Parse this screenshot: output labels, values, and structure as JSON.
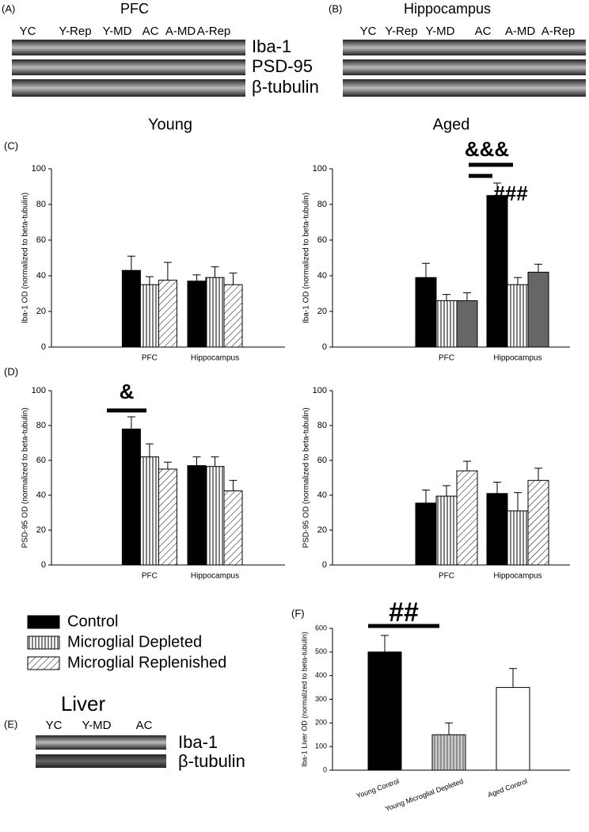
{
  "blots": [
    {
      "panel": "(A)",
      "title": "PFC",
      "lanes": [
        "YC",
        "Y-Rep",
        "Y-MD",
        "AC",
        "A-MD",
        "A-Rep"
      ],
      "rows": [
        "Iba-1",
        "PSD-95",
        "β-tubulin"
      ]
    },
    {
      "panel": "(B)",
      "title": "Hippocampus",
      "lanes": [
        "YC",
        "Y-Rep",
        "Y-MD",
        "AC",
        "A-MD",
        "A-Rep"
      ]
    },
    {
      "panel": "(E)",
      "title": "Liver",
      "lanes": [
        "YC",
        "Y-MD",
        "AC"
      ],
      "rows": [
        "Iba-1",
        "β-tubulin"
      ]
    }
  ],
  "headings": [
    "Young",
    "Aged"
  ],
  "panels": [
    "(C)",
    "(D)",
    "(F)"
  ],
  "chart_data": [
    {
      "type": "bar",
      "ylabel": "Iba-1 OD (normalized to beta-tubulin)",
      "categories": [
        "PFC",
        "Hippocampus"
      ],
      "ylim": [
        0,
        100
      ],
      "yticks": [
        0,
        20,
        40,
        60,
        80,
        100
      ],
      "series": [
        {
          "name": "Control",
          "color": "#000000",
          "pattern": "solid",
          "values": [
            43,
            37
          ],
          "errors": [
            8,
            3.5
          ]
        },
        {
          "name": "Microglial Depleted",
          "color": "#000000",
          "pattern": "vertical",
          "values": [
            35,
            39
          ],
          "errors": [
            4.5,
            6
          ]
        },
        {
          "name": "Microglial Replenished",
          "color": "#000000",
          "pattern": "diagonal",
          "values": [
            37.5,
            35
          ],
          "errors": [
            10,
            6.5
          ]
        }
      ]
    },
    {
      "type": "bar",
      "ylabel": "Iba-1 OD (normalized to beta-tubulin)",
      "categories": [
        "PFC",
        "Hippocampus"
      ],
      "ylim": [
        0,
        100
      ],
      "yticks": [
        0,
        20,
        40,
        60,
        80,
        100
      ],
      "annotations": [
        "&&&",
        "###"
      ],
      "series": [
        {
          "name": "Control",
          "color": "#000000",
          "pattern": "solid",
          "values": [
            39,
            85
          ],
          "errors": [
            8,
            7
          ]
        },
        {
          "name": "Microglial Depleted",
          "color": "#000000",
          "pattern": "vertical",
          "values": [
            26,
            35
          ],
          "errors": [
            3.5,
            4
          ]
        },
        {
          "name": "Microglial Replenished",
          "color": "#666666",
          "pattern": "solid",
          "values": [
            26,
            42
          ],
          "errors": [
            4.5,
            4.5
          ]
        }
      ]
    },
    {
      "type": "bar",
      "ylabel": "PSD-95 OD (normalized to beta-tubulin)",
      "categories": [
        "PFC",
        "Hippocampus"
      ],
      "ylim": [
        0,
        100
      ],
      "yticks": [
        0,
        20,
        40,
        60,
        80,
        100
      ],
      "annotations": [
        "&"
      ],
      "series": [
        {
          "name": "Control",
          "color": "#000000",
          "pattern": "solid",
          "values": [
            78,
            57
          ],
          "errors": [
            7,
            5
          ]
        },
        {
          "name": "Microglial Depleted",
          "color": "#000000",
          "pattern": "vertical",
          "values": [
            62,
            56.5
          ],
          "errors": [
            7.5,
            5.5
          ]
        },
        {
          "name": "Microglial Replenished",
          "color": "#000000",
          "pattern": "diagonal",
          "values": [
            55,
            42.5
          ],
          "errors": [
            4,
            6
          ]
        }
      ]
    },
    {
      "type": "bar",
      "ylabel": "PSD-95 OD (normalized to beta-tubulin)",
      "categories": [
        "PFC",
        "Hippocampus"
      ],
      "ylim": [
        0,
        100
      ],
      "yticks": [
        0,
        20,
        40,
        60,
        80,
        100
      ],
      "series": [
        {
          "name": "Control",
          "color": "#000000",
          "pattern": "solid",
          "values": [
            35.5,
            41
          ],
          "errors": [
            7.5,
            6.5
          ]
        },
        {
          "name": "Microglial Depleted",
          "color": "#000000",
          "pattern": "vertical",
          "values": [
            39.5,
            31
          ],
          "errors": [
            6,
            10.5
          ]
        },
        {
          "name": "Microglial Replenished",
          "color": "#000000",
          "pattern": "diagonal",
          "values": [
            54,
            48.5
          ],
          "errors": [
            5.5,
            7
          ]
        }
      ]
    },
    {
      "type": "bar",
      "ylabel": "Iba-1 Liver OD (normalized to beta-tubulin)",
      "categories": [
        "Young Control",
        "Young Microglial Depleted",
        "Aged Control"
      ],
      "ylim": [
        0,
        600
      ],
      "yticks": [
        0,
        100,
        200,
        300,
        400,
        500,
        600
      ],
      "annotations": [
        "##"
      ],
      "values": [
        500,
        150,
        350
      ],
      "errors": [
        70,
        50,
        80
      ],
      "colors": [
        "#000000",
        "#bbbbbb",
        "#ffffff"
      ],
      "patterns": [
        "solid",
        "vertical",
        "solid"
      ]
    }
  ]
}
